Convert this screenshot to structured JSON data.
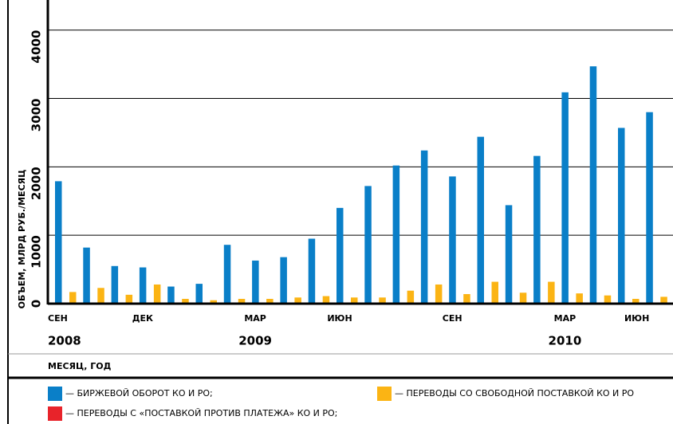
{
  "chart_data": {
    "type": "bar",
    "y_label": "ОБЪЕМ, МЛРД РУБ./МЕСЯЦ",
    "x_label": "МЕСЯЦ, ГОД",
    "categories": [
      "СЕН",
      null,
      null,
      "ДЕК",
      null,
      null,
      null,
      "МАР",
      null,
      null,
      "ИЮН",
      null,
      null,
      null,
      "СЕН",
      null,
      null,
      null,
      "МАР",
      null,
      null,
      "ИЮН"
    ],
    "years": [
      "2008",
      null,
      null,
      null,
      null,
      null,
      null,
      "2009",
      null,
      null,
      null,
      null,
      null,
      null,
      null,
      null,
      null,
      null,
      "2010",
      null,
      null,
      null
    ],
    "series": [
      {
        "name": "— БИРЖЕВОЙ ОБОРОТ КО И РО;",
        "color": "#0a7fc8",
        "values": [
          1790,
          820,
          550,
          530,
          250,
          290,
          860,
          630,
          680,
          950,
          1400,
          1720,
          2020,
          2240,
          1860,
          2440,
          1440,
          2160,
          3090,
          3470,
          2570,
          2800
        ]
      },
      {
        "name": "— ПЕРЕВОДЫ С «ПОСТАВКОЙ ПРОТИВ ПЛАТЕЖА» КО И РО;",
        "color": "#e8232a",
        "values": [
          15,
          15,
          15,
          15,
          15,
          15,
          15,
          15,
          15,
          15,
          15,
          15,
          15,
          15,
          15,
          15,
          15,
          15,
          15,
          15,
          15,
          15
        ]
      },
      {
        "name": "— ПЕРЕВОДЫ СО СВОБОДНОЙ ПОСТАВКОЙ КО И РО",
        "color": "#fbb414",
        "values": [
          170,
          230,
          130,
          280,
          70,
          50,
          70,
          70,
          90,
          110,
          90,
          90,
          190,
          280,
          140,
          320,
          160,
          320,
          150,
          120,
          70,
          100
        ]
      }
    ],
    "ylim": [
      0,
      4300
    ],
    "yticks": [
      0,
      1000,
      2000,
      3000,
      4000
    ],
    "grid": true
  }
}
